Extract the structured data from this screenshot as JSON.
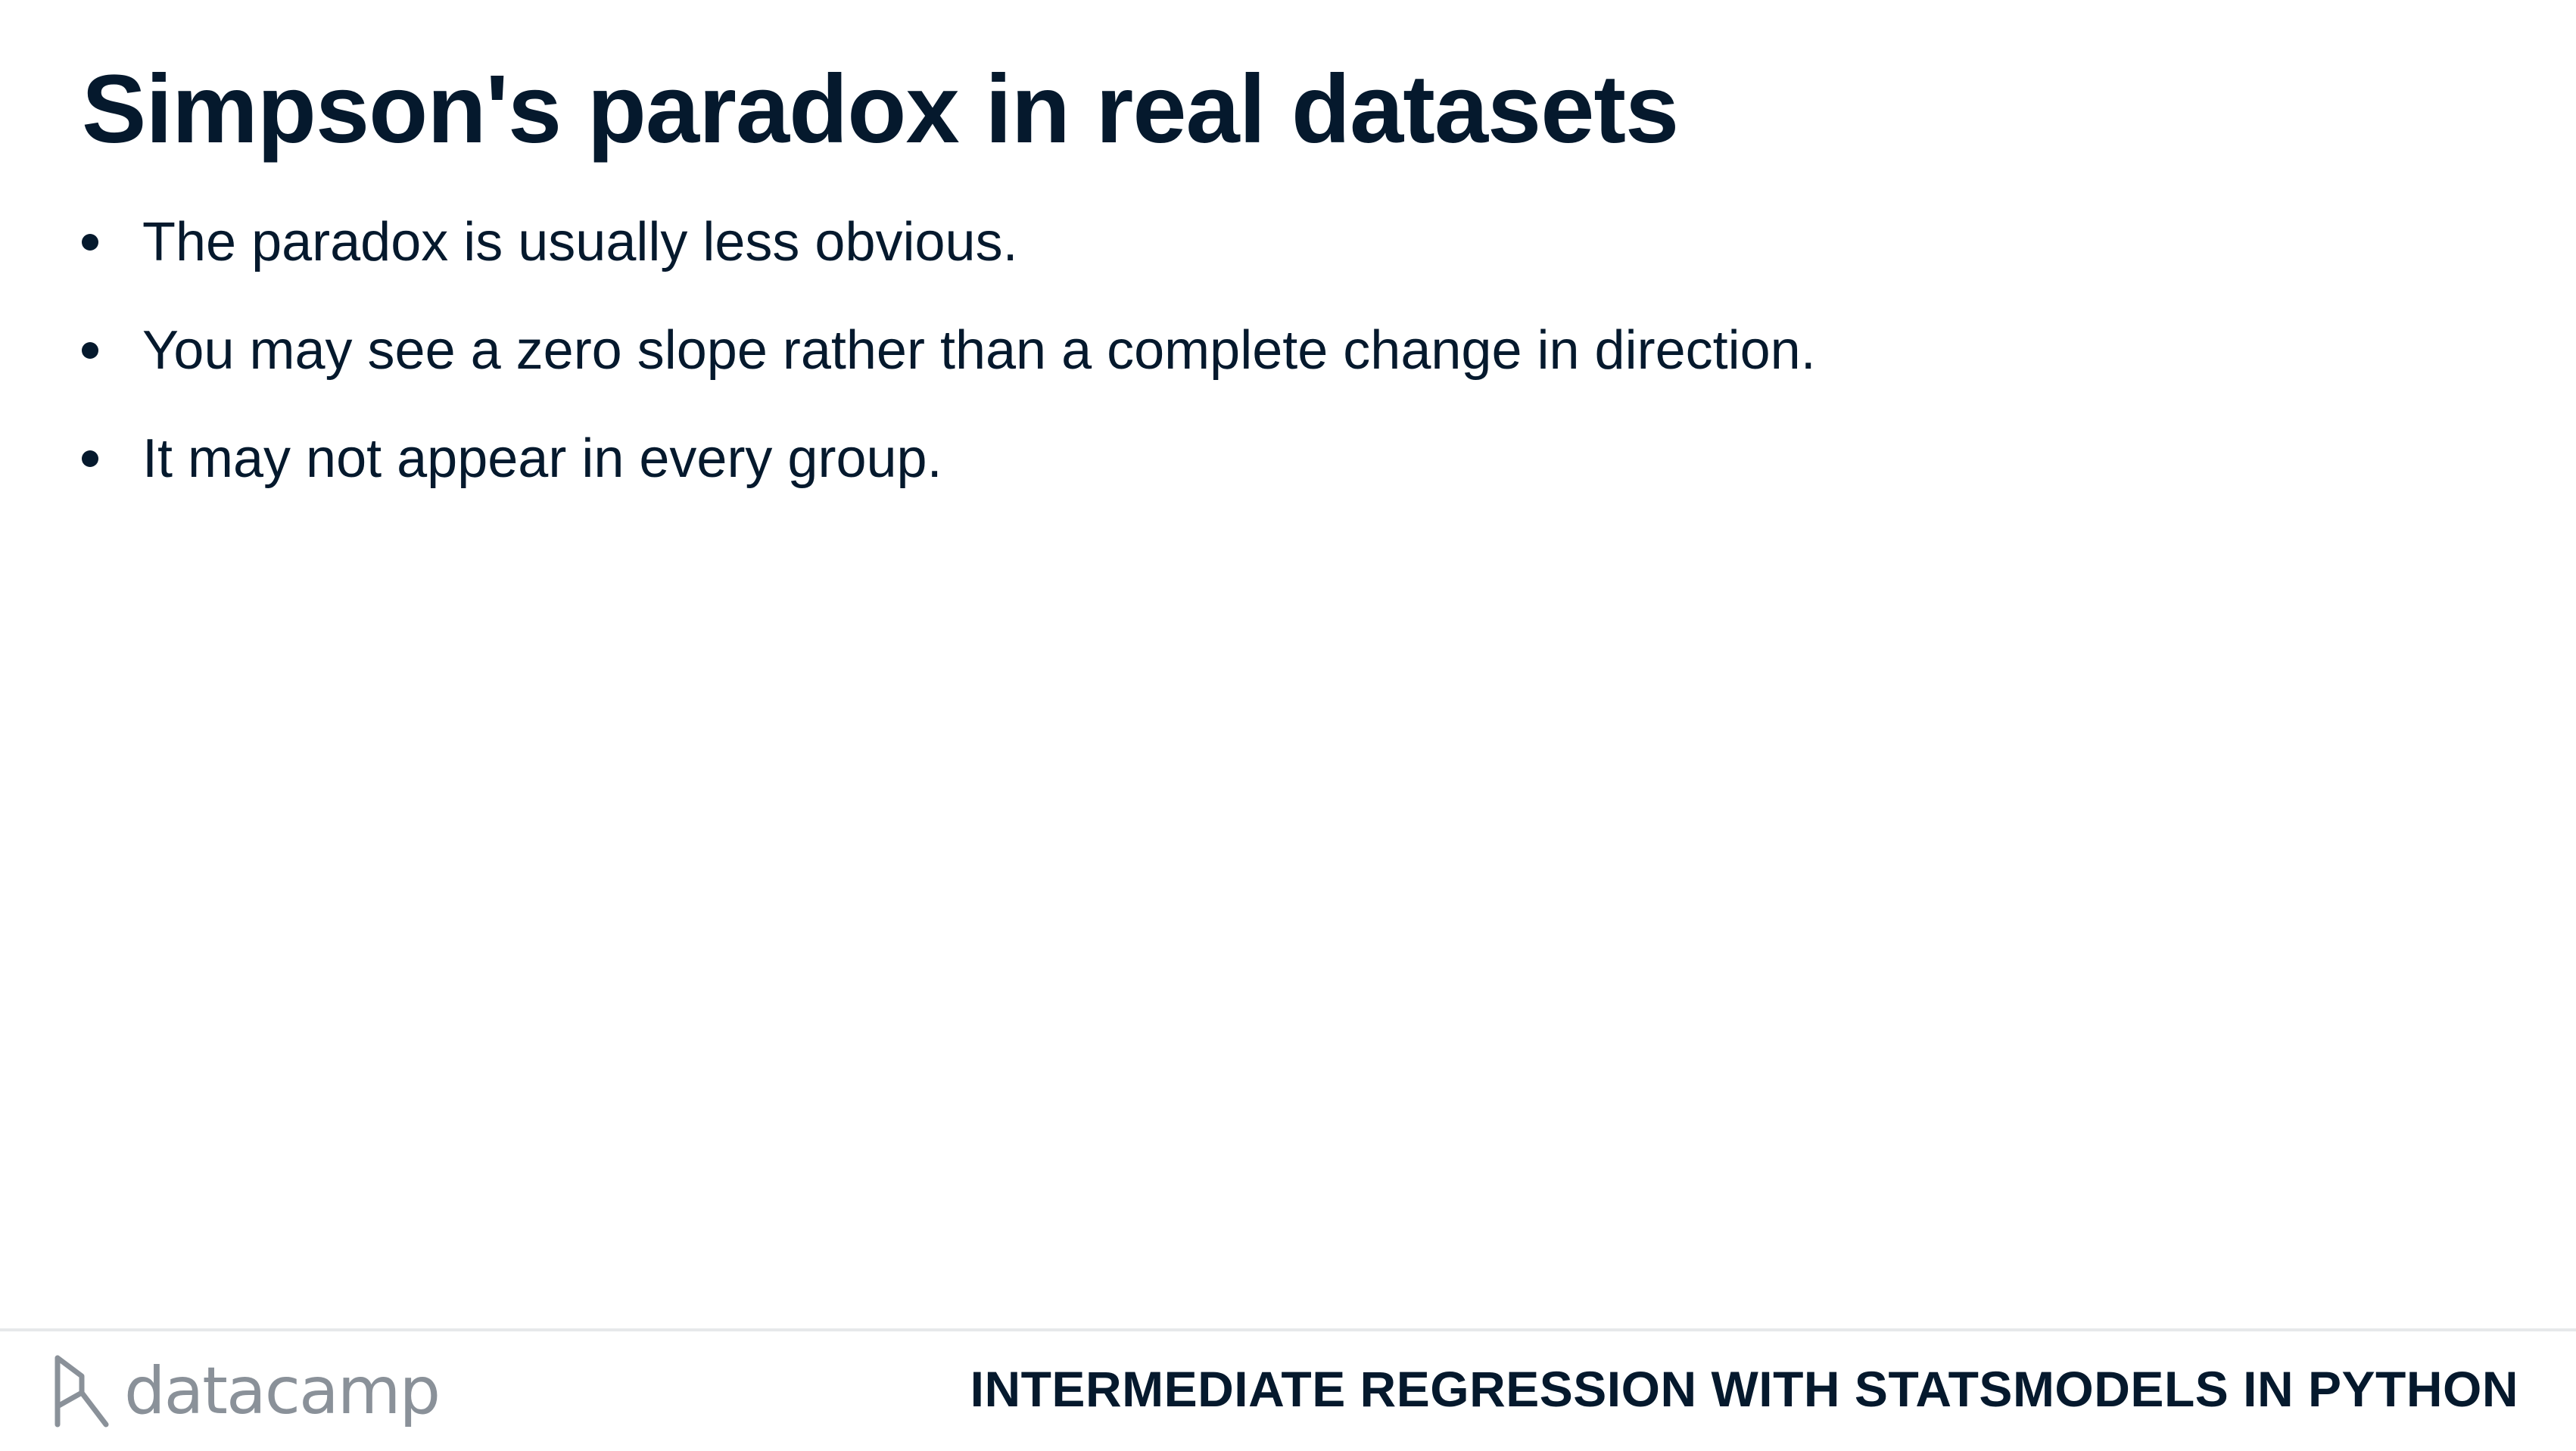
{
  "slide": {
    "title": "Simpson's paradox in real datasets",
    "bullets": [
      "The paradox is usually less obvious.",
      "You may see a zero slope rather than a complete change in direction.",
      "It may not appear in every group."
    ]
  },
  "footer": {
    "logo_text": "datacamp",
    "logo_icon": "datacamp-logo-icon",
    "course_title": "INTERMEDIATE REGRESSION WITH STATSMODELS IN PYTHON"
  },
  "colors": {
    "text": "#05192d",
    "logo": "#8a9199",
    "rule": "#e6e8ea",
    "background": "#ffffff"
  }
}
